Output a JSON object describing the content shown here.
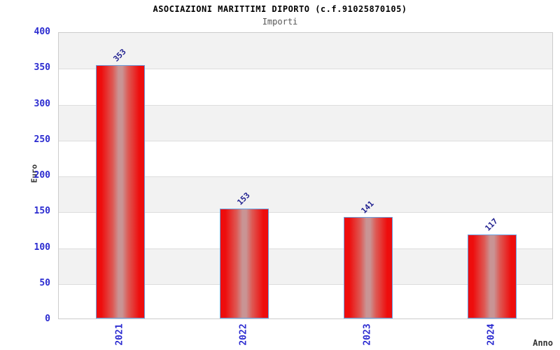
{
  "chart_data": {
    "type": "bar",
    "title": "ASOCIAZIONI MARITTIMI DIPORTO (c.f.91025870105)",
    "subtitle": "Importi",
    "xlabel": "Anno",
    "ylabel": "Euro",
    "categories": [
      "2021",
      "2022",
      "2023",
      "2024"
    ],
    "values": [
      353,
      153,
      141,
      117
    ],
    "bar_value_labels": [
      "353",
      "153",
      "141",
      "117"
    ],
    "ylim": [
      0,
      400
    ],
    "ytick_step": 50,
    "yticks": [
      "0",
      "50",
      "100",
      "150",
      "200",
      "250",
      "300",
      "350",
      "400"
    ],
    "grid": "horizontal bands, alternating gray/white from top",
    "legend_position": "none",
    "colors": {
      "tick_labels": "#2b2bd0",
      "value_labels": "#1f1f8f",
      "bar_border": "#6a9fe0",
      "bar_edge": "#ee0d0d",
      "bar_mid1": "#dd5a55",
      "bar_mid": "#c99494",
      "band_gray": "#f2f2f2",
      "grid_line": "#dddddd",
      "axis_border": "#cccccc",
      "title_text": "#000000",
      "subtitle_text": "#555555",
      "axis_title_text": "#333333"
    }
  }
}
